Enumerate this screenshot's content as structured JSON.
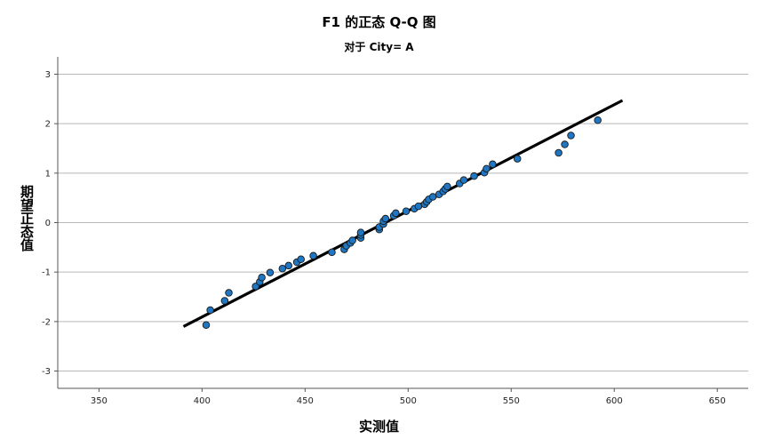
{
  "chart_data": {
    "type": "scatter",
    "title": "F1 的正态 Q-Q 图",
    "subtitle": "对于 City= A",
    "xlabel": "实测值",
    "ylabel": "期望正态值",
    "xlim": [
      330,
      665
    ],
    "ylim": [
      -3.35,
      3.35
    ],
    "xticks": [
      350,
      400,
      450,
      500,
      550,
      600,
      650
    ],
    "yticks": [
      3,
      2,
      1,
      0,
      -1,
      -2,
      -3
    ],
    "grid": "horizontal",
    "marker_color": "#1f77c4",
    "line_color": "#000000",
    "reference_line": {
      "x": [
        391,
        604
      ],
      "y": [
        -2.1,
        2.47
      ]
    },
    "points": [
      {
        "x": 402,
        "y": -2.07
      },
      {
        "x": 404,
        "y": -1.77
      },
      {
        "x": 411,
        "y": -1.58
      },
      {
        "x": 413,
        "y": -1.42
      },
      {
        "x": 426,
        "y": -1.29
      },
      {
        "x": 428,
        "y": -1.2
      },
      {
        "x": 429,
        "y": -1.11
      },
      {
        "x": 433,
        "y": -1.01
      },
      {
        "x": 439,
        "y": -0.93
      },
      {
        "x": 442,
        "y": -0.87
      },
      {
        "x": 446,
        "y": -0.8
      },
      {
        "x": 448,
        "y": -0.74
      },
      {
        "x": 454,
        "y": -0.67
      },
      {
        "x": 463,
        "y": -0.6
      },
      {
        "x": 469,
        "y": -0.54
      },
      {
        "x": 470,
        "y": -0.47
      },
      {
        "x": 472,
        "y": -0.41
      },
      {
        "x": 473,
        "y": -0.36
      },
      {
        "x": 477,
        "y": -0.31
      },
      {
        "x": 477,
        "y": -0.25
      },
      {
        "x": 477,
        "y": -0.2
      },
      {
        "x": 486,
        "y": -0.14
      },
      {
        "x": 486,
        "y": -0.09
      },
      {
        "x": 488,
        "y": -0.03
      },
      {
        "x": 488,
        "y": 0.03
      },
      {
        "x": 489,
        "y": 0.08
      },
      {
        "x": 493,
        "y": 0.14
      },
      {
        "x": 494,
        "y": 0.19
      },
      {
        "x": 499,
        "y": 0.23
      },
      {
        "x": 503,
        "y": 0.28
      },
      {
        "x": 505,
        "y": 0.33
      },
      {
        "x": 508,
        "y": 0.37
      },
      {
        "x": 509,
        "y": 0.42
      },
      {
        "x": 510,
        "y": 0.47
      },
      {
        "x": 512,
        "y": 0.52
      },
      {
        "x": 515,
        "y": 0.57
      },
      {
        "x": 517,
        "y": 0.63
      },
      {
        "x": 518,
        "y": 0.68
      },
      {
        "x": 519,
        "y": 0.73
      },
      {
        "x": 525,
        "y": 0.79
      },
      {
        "x": 527,
        "y": 0.86
      },
      {
        "x": 532,
        "y": 0.94
      },
      {
        "x": 537,
        "y": 1.01
      },
      {
        "x": 538,
        "y": 1.09
      },
      {
        "x": 541,
        "y": 1.18
      },
      {
        "x": 553,
        "y": 1.29
      },
      {
        "x": 573,
        "y": 1.41
      },
      {
        "x": 576,
        "y": 1.58
      },
      {
        "x": 579,
        "y": 1.76
      },
      {
        "x": 592,
        "y": 2.07
      }
    ]
  }
}
